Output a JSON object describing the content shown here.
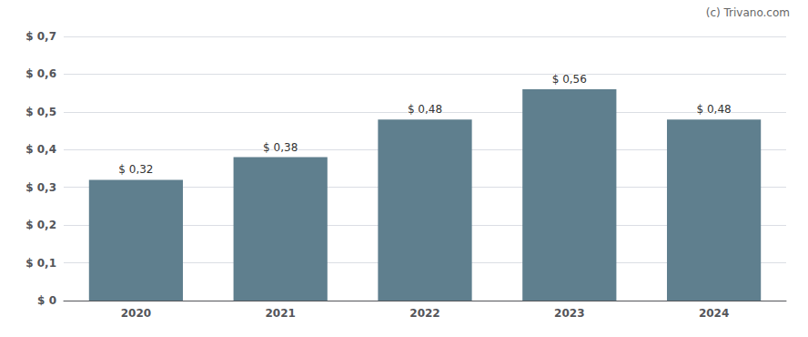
{
  "chart_data": {
    "type": "bar",
    "categories": [
      "2020",
      "2021",
      "2022",
      "2023",
      "2024"
    ],
    "values": [
      0.32,
      0.38,
      0.48,
      0.56,
      0.48
    ],
    "value_labels": [
      "$ 0,32",
      "$ 0,38",
      "$ 0,48",
      "$ 0,56",
      "$ 0,48"
    ],
    "data_labels": true,
    "color": "#5f7f8e",
    "ylim": [
      0,
      0.7
    ],
    "yticks": [
      {
        "value": 0.0,
        "label": "$ 0"
      },
      {
        "value": 0.1,
        "label": "$ 0,1"
      },
      {
        "value": 0.2,
        "label": "$ 0,2"
      },
      {
        "value": 0.3,
        "label": "$ 0,3"
      },
      {
        "value": 0.4,
        "label": "$ 0,4"
      },
      {
        "value": 0.5,
        "label": "$ 0,5"
      },
      {
        "value": 0.6,
        "label": "$ 0,6"
      },
      {
        "value": 0.7,
        "label": "$ 0,7"
      }
    ],
    "grid": true,
    "annotations": [
      "(c) Trivano.com"
    ]
  }
}
